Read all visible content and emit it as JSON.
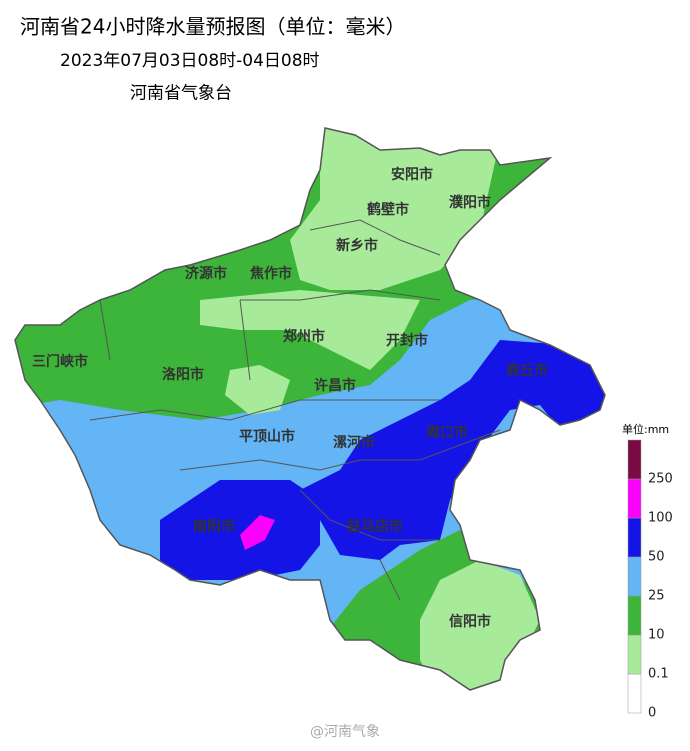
{
  "header": {
    "title": "河南省24小时降水量预报图（单位：毫米）",
    "period": "2023年07月03日08时-04日08时",
    "issuer": "河南省气象台"
  },
  "map": {
    "cities": [
      "安阳市",
      "鹤壁市",
      "濮阳市",
      "新乡市",
      "济源市",
      "焦作市",
      "郑州市",
      "开封市",
      "三门峡市",
      "洛阳市",
      "商丘市",
      "许昌市",
      "平顶山市",
      "漯河市",
      "周口市",
      "南阳市",
      "驻马店市",
      "信阳市"
    ]
  },
  "legend": {
    "unit": "单位:mm",
    "levels": [
      0,
      0.1,
      10,
      25,
      50,
      100,
      250
    ],
    "colors": [
      "#ffffff",
      "#a6ea9a",
      "#3db53b",
      "#63b5f6",
      "#1414e6",
      "#fb00fb",
      "#7a0a44"
    ]
  },
  "watermark": "@河南气象"
}
